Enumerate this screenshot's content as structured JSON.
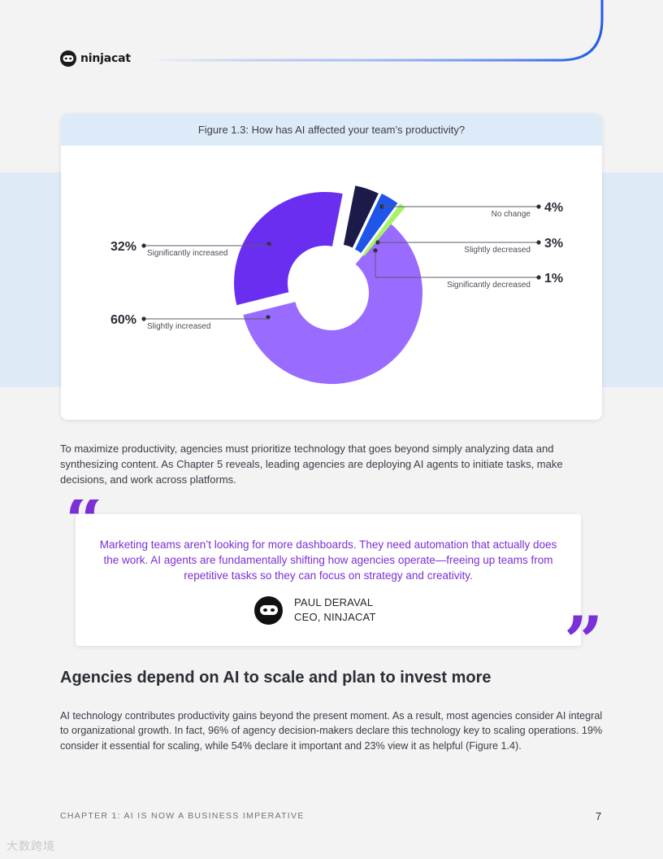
{
  "brand": {
    "name": "ninjacat"
  },
  "figure": {
    "caption": "Figure 1.3: How has AI affected your team’s productivity?"
  },
  "chart_data": {
    "type": "pie",
    "variant": "donut-exploded",
    "title": "Figure 1.3: How has AI affected your team’s productivity?",
    "labels": [
      "Slightly increased",
      "Significantly increased",
      "No change",
      "Slightly decreased",
      "Significantly decreased"
    ],
    "values": [
      60,
      32,
      4,
      3,
      1
    ],
    "value_labels": [
      "60%",
      "32%",
      "4%",
      "3%",
      "1%"
    ],
    "colors": [
      "#9a6bff",
      "#6a2ef0",
      "#1c1a48",
      "#1f55e8",
      "#a6f36a"
    ]
  },
  "body": {
    "paragraph_1": "To maximize productivity, agencies must prioritize technology that goes beyond simply analyzing data and synthesizing content. As Chapter 5 reveals, leading agencies are deploying AI agents to initiate tasks, make decisions, and work across platforms.",
    "section_title": "Agencies depend on AI to scale and plan to invest more",
    "paragraph_2": "AI technology contributes productivity gains beyond the present moment. As a result, most agencies consider AI integral to organizational growth. In fact, 96% of agency decision-makers declare this technology key to scaling operations. 19% consider it essential for scaling, while 54% declare it important and 23% view it as helpful (Figure 1.4)."
  },
  "quote": {
    "text": "Marketing teams aren’t looking for more dashboards. They need automation that actually does the work. AI agents are fundamentally shifting how agencies operate—freeing up teams from repetitive tasks so they can focus on strategy and creativity.",
    "author_name": "PAUL DERAVAL",
    "author_title": "CEO, NINJACAT",
    "accent_color": "#7b2fd6"
  },
  "footer": {
    "chapter": "CHAPTER 1: AI IS NOW A BUSINESS IMPERATIVE",
    "page_number": "7"
  },
  "watermark": "大数跨境",
  "colors": {
    "accent_blue": "#1f5ae8",
    "band": "#deebf7",
    "header_band": "#ddebf8"
  }
}
